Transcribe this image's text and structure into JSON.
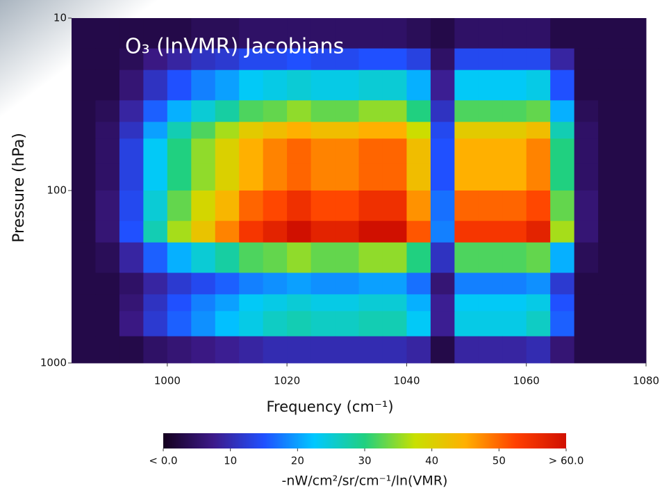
{
  "chart_data": {
    "type": "heatmap",
    "title": "O₃ (lnVMR) Jacobians",
    "xlabel": "Frequency (cm⁻¹)",
    "ylabel": "Pressure (hPa)",
    "colorbar_label": "-nW/cm²/sr/cm⁻¹/ln(VMR)",
    "xlim": [
      984,
      1080
    ],
    "xticks": [
      1000,
      1020,
      1040,
      1060,
      1080
    ],
    "ylim": [
      1000,
      10
    ],
    "yticks": [
      10,
      100,
      1000
    ],
    "ylog": true,
    "clim": [
      0,
      60
    ],
    "cticks": [
      {
        "value": 0,
        "label": "< 0.0"
      },
      10,
      20,
      30,
      40,
      50,
      {
        "value": 60,
        "label": "> 60.0"
      }
    ],
    "colormap": [
      "#14001e",
      "#3d1a8a",
      "#2050ff",
      "#00c8ff",
      "#20d080",
      "#c8e000",
      "#ffb000",
      "#ff4000",
      "#d01000"
    ],
    "xbins": [
      984,
      988,
      992,
      996,
      1000,
      1004,
      1008,
      1012,
      1016,
      1020,
      1024,
      1028,
      1032,
      1036,
      1040,
      1044,
      1048,
      1052,
      1056,
      1060,
      1064,
      1068,
      1072,
      1076,
      1080
    ],
    "ybins": [
      10,
      15,
      20,
      30,
      40,
      50,
      70,
      100,
      150,
      200,
      300,
      400,
      500,
      700,
      1000
    ],
    "values": [
      [
        3,
        3,
        3,
        3,
        3,
        4,
        4,
        5,
        5,
        5,
        5,
        5,
        5,
        5,
        4,
        3,
        5,
        5,
        5,
        5,
        3,
        3,
        3,
        3
      ],
      [
        3,
        3,
        4,
        7,
        9,
        11,
        12,
        14,
        14,
        15,
        14,
        14,
        15,
        15,
        13,
        5,
        14,
        14,
        14,
        14,
        9,
        3,
        3,
        3
      ],
      [
        3,
        3,
        6,
        11,
        15,
        18,
        20,
        23,
        24,
        25,
        24,
        24,
        25,
        25,
        21,
        8,
        23,
        23,
        23,
        24,
        15,
        3,
        3,
        3
      ],
      [
        3,
        4,
        9,
        16,
        21,
        25,
        28,
        32,
        33,
        35,
        33,
        33,
        35,
        35,
        30,
        11,
        32,
        32,
        32,
        33,
        21,
        4,
        3,
        3
      ],
      [
        3,
        5,
        11,
        20,
        27,
        32,
        36,
        41,
        43,
        45,
        43,
        43,
        45,
        45,
        38,
        14,
        41,
        41,
        41,
        43,
        27,
        5,
        3,
        3
      ],
      [
        3,
        5,
        13,
        23,
        30,
        35,
        40,
        45,
        48,
        50,
        48,
        48,
        50,
        50,
        43,
        15,
        45,
        45,
        45,
        48,
        30,
        5,
        3,
        3
      ],
      [
        3,
        5,
        13,
        23,
        30,
        35,
        40,
        45,
        48,
        50,
        48,
        48,
        50,
        50,
        43,
        15,
        45,
        45,
        45,
        48,
        30,
        5,
        3,
        3
      ],
      [
        3,
        6,
        14,
        25,
        33,
        39,
        44,
        50,
        52,
        55,
        52,
        52,
        55,
        55,
        47,
        17,
        50,
        50,
        50,
        52,
        33,
        6,
        3,
        3
      ],
      [
        3,
        6,
        15,
        27,
        36,
        42,
        48,
        54,
        57,
        60,
        57,
        57,
        60,
        60,
        51,
        18,
        54,
        54,
        54,
        57,
        36,
        6,
        3,
        3
      ],
      [
        3,
        4,
        9,
        16,
        21,
        25,
        28,
        32,
        33,
        35,
        33,
        33,
        35,
        35,
        30,
        11,
        32,
        32,
        32,
        33,
        21,
        4,
        3,
        3
      ],
      [
        3,
        3,
        5,
        9,
        12,
        14,
        16,
        18,
        19,
        20,
        19,
        19,
        20,
        20,
        17,
        6,
        18,
        18,
        18,
        19,
        12,
        3,
        3,
        3
      ],
      [
        3,
        3,
        6,
        11,
        15,
        18,
        20,
        23,
        24,
        25,
        24,
        24,
        25,
        25,
        21,
        8,
        23,
        23,
        23,
        24,
        15,
        3,
        3,
        3
      ],
      [
        3,
        3,
        7,
        12,
        16,
        19,
        22,
        24,
        26,
        27,
        26,
        26,
        27,
        27,
        23,
        8,
        24,
        24,
        24,
        26,
        16,
        3,
        3,
        3
      ],
      [
        3,
        3,
        3,
        5,
        6,
        7,
        8,
        9,
        10,
        10,
        10,
        10,
        10,
        10,
        9,
        3,
        9,
        9,
        9,
        10,
        6,
        3,
        3,
        3
      ]
    ]
  }
}
